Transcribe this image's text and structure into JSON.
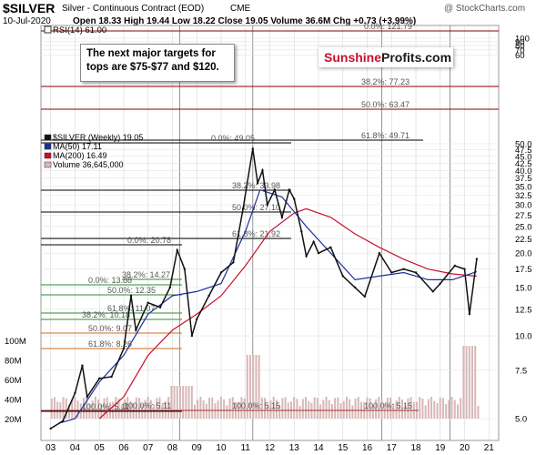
{
  "header": {
    "symbol": "$SILVER",
    "name": "Silver - Continuous Contract (EOD)",
    "exchange": "CME",
    "watermark": "@ StockCharts.com",
    "date": "10-Jul-2020",
    "quote": "Open 18.33  High 19.44  Low 18.22  Close 19.05  Volume 36.6M  Chg +0.73 (+3.99%)"
  },
  "callout": {
    "line1": "The next major targets for",
    "line2": "tops are $75-$77 and $120."
  },
  "logo": {
    "part1": "Sunshine",
    "part2": "Profits.com"
  },
  "colors": {
    "price": "#111111",
    "ma50": "#1c2f9c",
    "ma200": "#c8102e",
    "volume": "#d9b7b7",
    "target_line": "#8b0000",
    "fib_line": "#000000",
    "green_fib": "#2e8b2e",
    "orange_fib": "#d2691e",
    "price_baseline": "#b03030"
  },
  "chart_data": {
    "type": "line",
    "symbol": "$SILVER",
    "period": "Weekly",
    "x_ticks": [
      "03",
      "04",
      "05",
      "06",
      "07",
      "08",
      "09",
      "10",
      "11",
      "12",
      "13",
      "14",
      "15",
      "16",
      "17",
      "18",
      "19",
      "20",
      "21"
    ],
    "y_ticks": [
      5.0,
      7.5,
      10.0,
      12.5,
      15.0,
      17.5,
      20.0,
      22.5,
      25.0,
      27.5,
      30.0,
      32.5,
      35.0,
      37.5,
      40.0,
      42.5,
      45.0,
      47.5,
      50.0,
      60,
      70,
      80,
      90,
      100
    ],
    "scale": "log",
    "grid": true,
    "legend": [
      {
        "label": "$SILVER (Weekly) 19.05"
      },
      {
        "label": "MA(50) 17.11"
      },
      {
        "label": "MA(200) 16.49"
      },
      {
        "label": "Volume 36,645,000"
      }
    ],
    "indicator": {
      "label": "RSI(14) 61.00"
    },
    "volume_ticks": [
      "100M",
      "80M",
      "60M",
      "40M",
      "20M"
    ],
    "fib_labels": [
      {
        "text": "0.0%: 121.79",
        "value": 121.79
      },
      {
        "text": "38.2%: 77.23",
        "value": 77.23
      },
      {
        "text": "50.0%: 63.47",
        "value": 63.47
      },
      {
        "text": "61.8%: 49.71",
        "value": 49.71
      },
      {
        "text": "0.0%: 49.05",
        "value": 49.05
      },
      {
        "text": "38.2%: 33.98",
        "value": 33.98
      },
      {
        "text": "50.0%: 27.10",
        "value": 27.1
      },
      {
        "text": "61.8%: 21.92",
        "value": 21.92
      },
      {
        "text": "0.0%: 20.78",
        "value": 20.78
      },
      {
        "text": "38.2%: 14.27",
        "value": 14.27
      },
      {
        "text": "0.0%: 13.88",
        "value": 13.88
      },
      {
        "text": "50.0%: 12.35",
        "value": 12.35
      },
      {
        "text": "61.8%: 11.07",
        "value": 11.07
      },
      {
        "text": "38.2%: 10.18",
        "value": 10.18
      },
      {
        "text": "50.0%: 9.07",
        "value": 9.07
      },
      {
        "text": "61.8%: 8.26",
        "value": 8.26
      },
      {
        "text": "100.0%: 5.11",
        "value": 5.11
      },
      {
        "text": "100.0%: 5.11",
        "value": 5.11
      },
      {
        "text": "100.0%: 5.15",
        "value": 5.15
      },
      {
        "text": "100.0%: 5.15",
        "value": 5.15
      }
    ],
    "price_series": [
      {
        "year": 2003.0,
        "value": 4.6
      },
      {
        "year": 2003.5,
        "value": 4.9
      },
      {
        "year": 2004.0,
        "value": 6.2
      },
      {
        "year": 2004.3,
        "value": 7.8
      },
      {
        "year": 2004.5,
        "value": 6.0
      },
      {
        "year": 2005.0,
        "value": 7.0
      },
      {
        "year": 2005.5,
        "value": 7.1
      },
      {
        "year": 2006.0,
        "value": 9.0
      },
      {
        "year": 2006.3,
        "value": 14.0
      },
      {
        "year": 2006.5,
        "value": 10.5
      },
      {
        "year": 2007.0,
        "value": 13.2
      },
      {
        "year": 2007.5,
        "value": 12.7
      },
      {
        "year": 2007.9,
        "value": 15.0
      },
      {
        "year": 2008.2,
        "value": 20.5
      },
      {
        "year": 2008.5,
        "value": 17.5
      },
      {
        "year": 2008.8,
        "value": 10.0
      },
      {
        "year": 2009.0,
        "value": 11.5
      },
      {
        "year": 2009.5,
        "value": 14.0
      },
      {
        "year": 2010.0,
        "value": 17.0
      },
      {
        "year": 2010.5,
        "value": 18.5
      },
      {
        "year": 2010.9,
        "value": 29.0
      },
      {
        "year": 2011.3,
        "value": 48.0
      },
      {
        "year": 2011.5,
        "value": 36.0
      },
      {
        "year": 2011.7,
        "value": 40.0
      },
      {
        "year": 2011.9,
        "value": 30.0
      },
      {
        "year": 2012.2,
        "value": 34.0
      },
      {
        "year": 2012.5,
        "value": 27.0
      },
      {
        "year": 2012.8,
        "value": 34.0
      },
      {
        "year": 2013.0,
        "value": 31.5
      },
      {
        "year": 2013.3,
        "value": 24.0
      },
      {
        "year": 2013.5,
        "value": 19.5
      },
      {
        "year": 2013.8,
        "value": 22.0
      },
      {
        "year": 2014.0,
        "value": 20.0
      },
      {
        "year": 2014.5,
        "value": 21.0
      },
      {
        "year": 2015.0,
        "value": 16.5
      },
      {
        "year": 2015.5,
        "value": 15.0
      },
      {
        "year": 2015.9,
        "value": 13.9
      },
      {
        "year": 2016.5,
        "value": 20.0
      },
      {
        "year": 2017.0,
        "value": 17.0
      },
      {
        "year": 2017.5,
        "value": 17.5
      },
      {
        "year": 2018.0,
        "value": 17.0
      },
      {
        "year": 2018.7,
        "value": 14.5
      },
      {
        "year": 2019.0,
        "value": 15.5
      },
      {
        "year": 2019.6,
        "value": 18.0
      },
      {
        "year": 2020.0,
        "value": 17.5
      },
      {
        "year": 2020.2,
        "value": 12.0
      },
      {
        "year": 2020.5,
        "value": 19.05
      }
    ],
    "ma50_series": [
      {
        "year": 2003.3,
        "value": 4.8
      },
      {
        "year": 2004.0,
        "value": 5.0
      },
      {
        "year": 2005.0,
        "value": 6.8
      },
      {
        "year": 2006.0,
        "value": 8.5
      },
      {
        "year": 2007.0,
        "value": 12.0
      },
      {
        "year": 2008.0,
        "value": 14.0
      },
      {
        "year": 2009.0,
        "value": 14.5
      },
      {
        "year": 2010.0,
        "value": 15.5
      },
      {
        "year": 2011.0,
        "value": 24.0
      },
      {
        "year": 2011.6,
        "value": 34.0
      },
      {
        "year": 2012.5,
        "value": 32.0
      },
      {
        "year": 2013.5,
        "value": 25.0
      },
      {
        "year": 2014.5,
        "value": 20.0
      },
      {
        "year": 2015.5,
        "value": 16.0
      },
      {
        "year": 2016.5,
        "value": 16.5
      },
      {
        "year": 2017.5,
        "value": 17.0
      },
      {
        "year": 2018.5,
        "value": 16.0
      },
      {
        "year": 2019.5,
        "value": 16.0
      },
      {
        "year": 2020.5,
        "value": 17.11
      }
    ],
    "ma200_series": [
      {
        "year": 2005.0,
        "value": 5.0
      },
      {
        "year": 2006.0,
        "value": 6.0
      },
      {
        "year": 2007.0,
        "value": 8.5
      },
      {
        "year": 2008.0,
        "value": 10.5
      },
      {
        "year": 2009.0,
        "value": 12.0
      },
      {
        "year": 2010.0,
        "value": 14.0
      },
      {
        "year": 2011.0,
        "value": 18.0
      },
      {
        "year": 2012.0,
        "value": 24.0
      },
      {
        "year": 2013.0,
        "value": 28.0
      },
      {
        "year": 2013.5,
        "value": 29.0
      },
      {
        "year": 2014.5,
        "value": 27.0
      },
      {
        "year": 2015.5,
        "value": 23.5
      },
      {
        "year": 2016.5,
        "value": 21.0
      },
      {
        "year": 2017.5,
        "value": 19.0
      },
      {
        "year": 2018.5,
        "value": 17.5
      },
      {
        "year": 2019.5,
        "value": 16.8
      },
      {
        "year": 2020.5,
        "value": 16.49
      }
    ]
  }
}
